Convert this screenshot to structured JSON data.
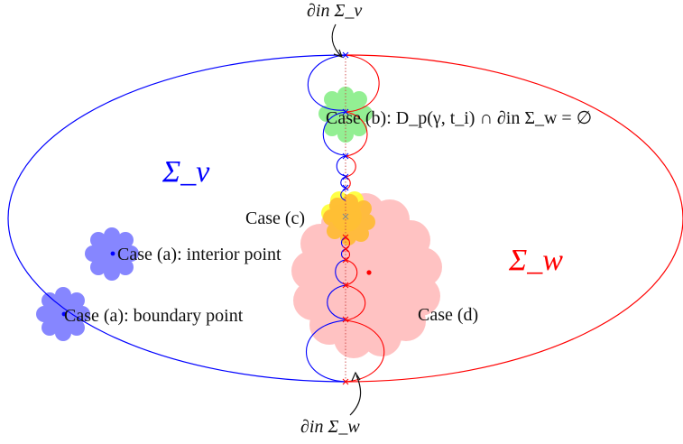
{
  "labels": {
    "top_boundary": "∂in Σ_v",
    "bottom_boundary": "∂in Σ_w",
    "sigma_v": "Σ_v",
    "sigma_w": "Σ_w",
    "case_b": "Case (b): D_p(γ, t_i) ∩ ∂in Σ_w = ∅",
    "case_c": "Case (c)",
    "case_a_interior": "Case (a): interior point",
    "case_a_boundary": "Case (a): boundary point",
    "case_d": "Case (d)"
  },
  "colors": {
    "sigma_v": "#0000ff",
    "sigma_w": "#ff0000",
    "case_a_disk": "#8080ff",
    "case_b_disk": "#80e680",
    "case_c_disk_outer": "#ffff33",
    "case_c_disk_inner": "#ffb833",
    "case_d_disk": "#ffb3b3",
    "axis": "#cc4444"
  }
}
